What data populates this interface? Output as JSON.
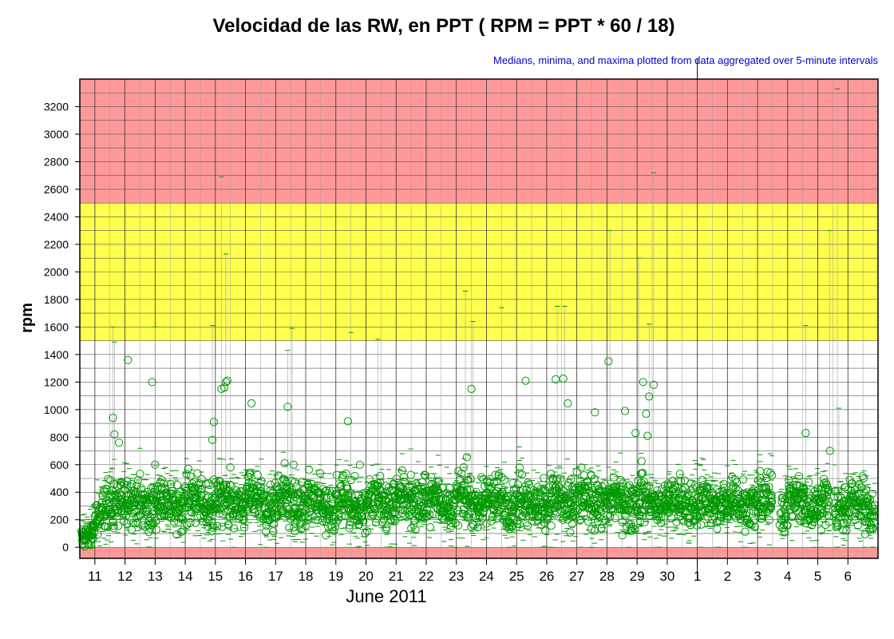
{
  "chart_data": {
    "type": "scatter",
    "title": "Velocidad de las RW, en PPT ( RPM = PPT * 60 / 18)",
    "subtitle": "Medians, minima, and maxima plotted from data aggregated over 5-minute intervals",
    "ylabel": "rpm",
    "xlabel": "June 2011",
    "ylim": [
      -80,
      3400
    ],
    "yticks": [
      0,
      200,
      400,
      600,
      800,
      1000,
      1200,
      1400,
      1600,
      1800,
      2000,
      2200,
      2400,
      2600,
      2800,
      3000,
      3200
    ],
    "x_tick_labels": [
      "11",
      "12",
      "13",
      "14",
      "15",
      "16",
      "17",
      "18",
      "19",
      "20",
      "21",
      "22",
      "23",
      "24",
      "25",
      "26",
      "27",
      "28",
      "29",
      "30",
      "1",
      "2",
      "3",
      "4",
      "5",
      "6"
    ],
    "grid": true,
    "bands": [
      {
        "from": -80,
        "to": 0,
        "color": "#ff9999"
      },
      {
        "from": 1500,
        "to": 2500,
        "color": "#ffff4d"
      },
      {
        "from": 2500,
        "to": 3400,
        "color": "#ff9999"
      }
    ],
    "series": [
      {
        "marker": "circle",
        "color": "#009900"
      }
    ],
    "median_profile": [
      {
        "day": 10.5,
        "value": 80
      },
      {
        "day": 11.0,
        "value": 150
      },
      {
        "day": 11.5,
        "value": 330
      },
      {
        "day": 16.0,
        "value": 320
      },
      {
        "day": 20.0,
        "value": 320
      },
      {
        "day": 21.0,
        "value": 340
      },
      {
        "day": 30.0,
        "value": 320
      },
      {
        "day": 33.0,
        "value": 320
      },
      {
        "day": 37.0,
        "value": 310
      }
    ],
    "gaps": [
      [
        33.5,
        33.75
      ],
      [
        35.4,
        35.55
      ]
    ],
    "outliers": [
      {
        "day": 11.6,
        "value": 940
      },
      {
        "day": 11.65,
        "value": 820
      },
      {
        "day": 11.8,
        "value": 760
      },
      {
        "day": 12.1,
        "value": 1360
      },
      {
        "day": 12.9,
        "value": 1200
      },
      {
        "day": 13.0,
        "value": 600
      },
      {
        "day": 14.1,
        "value": 570
      },
      {
        "day": 14.9,
        "value": 780
      },
      {
        "day": 14.95,
        "value": 910
      },
      {
        "day": 15.2,
        "value": 1150
      },
      {
        "day": 15.3,
        "value": 1160
      },
      {
        "day": 15.35,
        "value": 1200
      },
      {
        "day": 15.4,
        "value": 1210
      },
      {
        "day": 15.5,
        "value": 580
      },
      {
        "day": 16.2,
        "value": 1045
      },
      {
        "day": 17.4,
        "value": 1020
      },
      {
        "day": 17.6,
        "value": 600
      },
      {
        "day": 17.3,
        "value": 610
      },
      {
        "day": 19.4,
        "value": 915
      },
      {
        "day": 19.8,
        "value": 600
      },
      {
        "day": 23.35,
        "value": 655
      },
      {
        "day": 23.5,
        "value": 1150
      },
      {
        "day": 25.3,
        "value": 1210
      },
      {
        "day": 26.3,
        "value": 1220
      },
      {
        "day": 26.55,
        "value": 1225
      },
      {
        "day": 26.7,
        "value": 1045
      },
      {
        "day": 27.6,
        "value": 980
      },
      {
        "day": 28.05,
        "value": 1350
      },
      {
        "day": 28.6,
        "value": 990
      },
      {
        "day": 28.95,
        "value": 830
      },
      {
        "day": 29.2,
        "value": 1200
      },
      {
        "day": 29.3,
        "value": 970
      },
      {
        "day": 29.35,
        "value": 810
      },
      {
        "day": 29.4,
        "value": 1095
      },
      {
        "day": 29.55,
        "value": 1180
      },
      {
        "day": 29.15,
        "value": 625
      },
      {
        "day": 34.6,
        "value": 830
      },
      {
        "day": 35.4,
        "value": 700
      }
    ],
    "maxima": [
      {
        "day": 11.6,
        "value": 1600
      },
      {
        "day": 11.65,
        "value": 1490
      },
      {
        "day": 13.0,
        "value": 1600
      },
      {
        "day": 14.9,
        "value": 1610
      },
      {
        "day": 15.2,
        "value": 2690
      },
      {
        "day": 15.35,
        "value": 2130
      },
      {
        "day": 17.55,
        "value": 1590
      },
      {
        "day": 17.4,
        "value": 1430
      },
      {
        "day": 19.5,
        "value": 1560
      },
      {
        "day": 20.4,
        "value": 1510
      },
      {
        "day": 23.3,
        "value": 1860
      },
      {
        "day": 23.55,
        "value": 1640
      },
      {
        "day": 24.5,
        "value": 1740
      },
      {
        "day": 26.35,
        "value": 1750
      },
      {
        "day": 26.6,
        "value": 1750
      },
      {
        "day": 28.1,
        "value": 2300
      },
      {
        "day": 29.05,
        "value": 2100
      },
      {
        "day": 29.4,
        "value": 1620
      },
      {
        "day": 29.55,
        "value": 2720
      },
      {
        "day": 34.6,
        "value": 1610
      },
      {
        "day": 35.4,
        "value": 2300
      },
      {
        "day": 35.65,
        "value": 3330
      },
      {
        "day": 35.7,
        "value": 1010
      }
    ]
  }
}
